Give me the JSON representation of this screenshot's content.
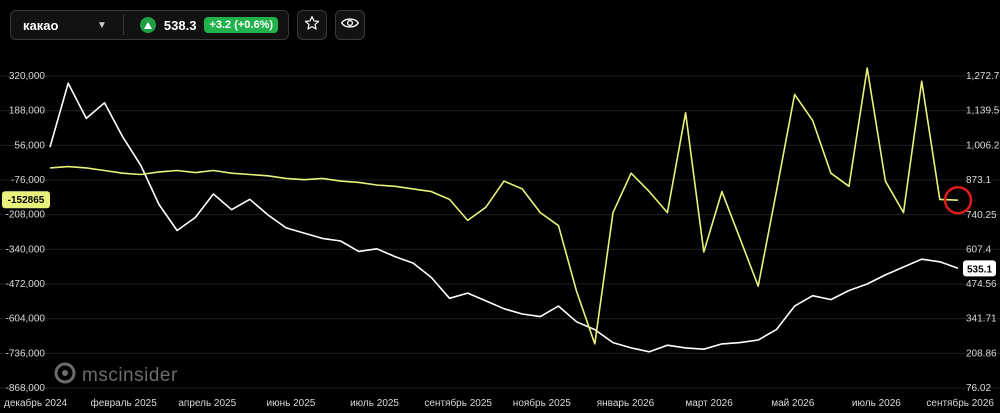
{
  "header": {
    "ticker": "какао",
    "price": "538.3",
    "change": "+3.2 (+0.6%)"
  },
  "watermark": "mscinsider",
  "colors": {
    "background": "#000000",
    "white_series": "#ffffff",
    "yellow_series": "#e8f27a",
    "up_green": "#22b24c",
    "marker_red": "#e11b1b"
  },
  "icons": [
    "up-triangle-icon",
    "chevron-down-icon",
    "star-icon",
    "eye-icon"
  ],
  "chart_data": {
    "type": "line",
    "x_tick_labels": [
      "декабрь 2024",
      "февраль 2025",
      "апрель 2025",
      "июнь 2025",
      "июль 2025",
      "сентябрь 2025",
      "ноябрь 2025",
      "январь 2026",
      "март 2026",
      "май 2026",
      "июль 2026",
      "сентябрь 2026"
    ],
    "left_axis": {
      "ticks": [
        320000,
        188000,
        56000,
        -76000,
        -208000,
        -340000,
        -472000,
        -604000,
        -736000,
        -868000
      ],
      "tick_labels": [
        "320,000",
        "188,000",
        "56,000",
        "-76,000",
        "-208,000",
        "-340,000",
        "-472,000",
        "-604,000",
        "-736,000",
        "-868,000"
      ],
      "range": [
        -868000,
        320000
      ]
    },
    "right_axis": {
      "ticks": [
        1272.75,
        1139.5,
        1006.25,
        873.1,
        740.25,
        607.4,
        474.56,
        341.71,
        208.86,
        76.02
      ],
      "tick_labels": [
        "1,272.75",
        "1,139.5",
        "1,006.25",
        "873.1",
        "740.25",
        "607.4",
        "474.56",
        "341.71",
        "208.86",
        "76.02"
      ],
      "range": [
        76.02,
        1272.75
      ]
    },
    "current_labels": {
      "left_axis": "-152865",
      "right_axis": "535.1"
    },
    "series": [
      {
        "axis": "right",
        "color": "#ffffff",
        "x": [
          0,
          0.02,
          0.04,
          0.06,
          0.08,
          0.1,
          0.12,
          0.14,
          0.16,
          0.18,
          0.2,
          0.22,
          0.24,
          0.26,
          0.28,
          0.3,
          0.32,
          0.34,
          0.36,
          0.38,
          0.4,
          0.42,
          0.44,
          0.46,
          0.48,
          0.5,
          0.52,
          0.54,
          0.56,
          0.58,
          0.6,
          0.62,
          0.64,
          0.66,
          0.68,
          0.7,
          0.72,
          0.74,
          0.76,
          0.78,
          0.8,
          0.82,
          0.84,
          0.86,
          0.88,
          0.9,
          0.92,
          0.94,
          0.96,
          0.98,
          1.0
        ],
        "values": [
          1000,
          1245,
          1110,
          1170,
          1040,
          930,
          780,
          680,
          730,
          820,
          760,
          800,
          740,
          690,
          670,
          650,
          640,
          600,
          610,
          580,
          555,
          500,
          420,
          440,
          410,
          380,
          360,
          350,
          390,
          330,
          300,
          250,
          230,
          215,
          240,
          230,
          225,
          245,
          250,
          260,
          300,
          390,
          430,
          415,
          450,
          475,
          510,
          540,
          570,
          560,
          535
        ]
      },
      {
        "axis": "left",
        "color": "#e8f27a",
        "x": [
          0,
          0.02,
          0.04,
          0.06,
          0.08,
          0.1,
          0.12,
          0.14,
          0.16,
          0.18,
          0.2,
          0.22,
          0.24,
          0.26,
          0.28,
          0.3,
          0.32,
          0.34,
          0.36,
          0.38,
          0.4,
          0.42,
          0.44,
          0.46,
          0.48,
          0.5,
          0.52,
          0.54,
          0.56,
          0.58,
          0.6,
          0.62,
          0.64,
          0.66,
          0.68,
          0.7,
          0.72,
          0.74,
          0.76,
          0.78,
          0.8,
          0.82,
          0.84,
          0.86,
          0.88,
          0.9,
          0.92,
          0.94,
          0.96,
          0.98,
          1.0
        ],
        "values": [
          -30000,
          -25000,
          -30000,
          -40000,
          -50000,
          -55000,
          -45000,
          -40000,
          -48000,
          -40000,
          -50000,
          -55000,
          -60000,
          -70000,
          -75000,
          -70000,
          -80000,
          -85000,
          -95000,
          -100000,
          -110000,
          -120000,
          -150000,
          -230000,
          -180000,
          -80000,
          -110000,
          -200000,
          -250000,
          -500000,
          -700000,
          -200000,
          -50000,
          -120000,
          -200000,
          180000,
          -350000,
          -120000,
          -300000,
          -480000,
          -120000,
          250000,
          150000,
          -50000,
          -100000,
          350000,
          -80000,
          -200000,
          300000,
          -150000,
          -153000
        ]
      }
    ]
  }
}
